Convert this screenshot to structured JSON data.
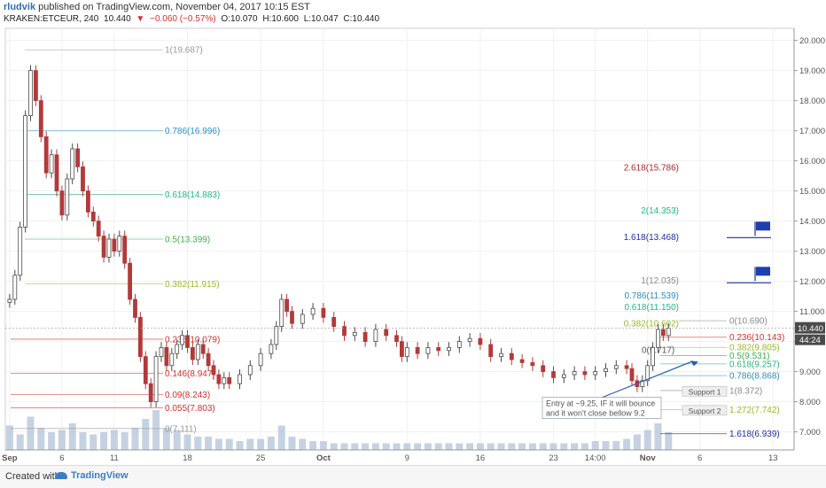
{
  "header": {
    "author": "rludvik",
    "published_text": " published on TradingView.com, November 04, 2017 10:15 EST",
    "symbol": "KRAKEN:ETCEUR, 240",
    "last": "10.440",
    "change": "−0.060 (−0.57%)",
    "open": "O:10.070",
    "high": "H:10.600",
    "low": "L:10.047",
    "close": "C:10.440"
  },
  "footer": {
    "created_with": "Created with",
    "brand": "TradingView"
  },
  "chart_data": {
    "type": "candlestick",
    "y_ticks": [
      "7.000",
      "8.000",
      "9.000",
      "10.000",
      "11.000",
      "12.000",
      "13.000",
      "14.000",
      "15.000",
      "16.000",
      "17.000",
      "18.000",
      "19.000",
      "20.000"
    ],
    "ylim": [
      6.4,
      20.4
    ],
    "x_ticks": [
      {
        "label": "Sep",
        "day": 1
      },
      {
        "label": "6",
        "day": 6
      },
      {
        "label": "11",
        "day": 11
      },
      {
        "label": "18",
        "day": 18
      },
      {
        "label": "25",
        "day": 25
      },
      {
        "label": "Oct",
        "day": 31
      },
      {
        "label": "9",
        "day": 39
      },
      {
        "label": "16",
        "day": 46
      },
      {
        "label": "23",
        "day": 53
      },
      {
        "label": "14:00",
        "day": 57
      },
      {
        "label": "Nov",
        "day": 62
      },
      {
        "label": "6",
        "day": 67
      },
      {
        "label": "13",
        "day": 74
      }
    ],
    "xlim": [
      0.5,
      77
    ],
    "price_tag": "10.440",
    "countdown_tag": "44:24",
    "price_series": [
      [
        1,
        11.4
      ],
      [
        1.5,
        12.2
      ],
      [
        2,
        13.8
      ],
      [
        2.5,
        17.5
      ],
      [
        3,
        19.0
      ],
      [
        3.5,
        18.0
      ],
      [
        4,
        16.8
      ],
      [
        4.5,
        15.6
      ],
      [
        5,
        16.2
      ],
      [
        5.5,
        15.0
      ],
      [
        6,
        14.2
      ],
      [
        6.5,
        15.4
      ],
      [
        7,
        16.4
      ],
      [
        7.5,
        15.8
      ],
      [
        8,
        15.0
      ],
      [
        8.5,
        14.3
      ],
      [
        9,
        14.0
      ],
      [
        9.5,
        13.5
      ],
      [
        10,
        12.8
      ],
      [
        10.5,
        13.4
      ],
      [
        11,
        13.0
      ],
      [
        11.5,
        13.5
      ],
      [
        12,
        12.6
      ],
      [
        12.5,
        11.4
      ],
      [
        13,
        10.8
      ],
      [
        13.5,
        9.5
      ],
      [
        14,
        8.6
      ],
      [
        14.5,
        8.0
      ],
      [
        15,
        9.5
      ],
      [
        15.5,
        9.8
      ],
      [
        16,
        9.2
      ],
      [
        16.5,
        9.6
      ],
      [
        17,
        9.9
      ],
      [
        17.5,
        10.2
      ],
      [
        18,
        9.8
      ],
      [
        18.5,
        9.4
      ],
      [
        19,
        9.9
      ],
      [
        19.5,
        9.6
      ],
      [
        20,
        9.2
      ],
      [
        20.5,
        8.9
      ],
      [
        21,
        8.6
      ],
      [
        21.5,
        8.8
      ],
      [
        22,
        8.6
      ],
      [
        23,
        8.9
      ],
      [
        24,
        9.2
      ],
      [
        25,
        9.6
      ],
      [
        26,
        9.9
      ],
      [
        26.5,
        10.5
      ],
      [
        27,
        11.4
      ],
      [
        27.5,
        11.0
      ],
      [
        28,
        10.6
      ],
      [
        29,
        10.9
      ],
      [
        30,
        11.1
      ],
      [
        31,
        10.8
      ],
      [
        32,
        10.5
      ],
      [
        33,
        10.2
      ],
      [
        34,
        10.3
      ],
      [
        35,
        10.0
      ],
      [
        36,
        10.4
      ],
      [
        37,
        10.2
      ],
      [
        38,
        10.0
      ],
      [
        38.5,
        9.5
      ],
      [
        39,
        9.8
      ],
      [
        40,
        9.6
      ],
      [
        41,
        9.8
      ],
      [
        42,
        9.7
      ],
      [
        43,
        9.8
      ],
      [
        44,
        10.0
      ],
      [
        45,
        10.1
      ],
      [
        46,
        9.9
      ],
      [
        47,
        9.5
      ],
      [
        48,
        9.6
      ],
      [
        49,
        9.4
      ],
      [
        50,
        9.3
      ],
      [
        51,
        9.2
      ],
      [
        52,
        9.0
      ],
      [
        53,
        8.8
      ],
      [
        54,
        8.9
      ],
      [
        55,
        9.0
      ],
      [
        56,
        8.9
      ],
      [
        57,
        9.0
      ],
      [
        58,
        9.1
      ],
      [
        59,
        9.2
      ],
      [
        60,
        9.1
      ],
      [
        60.5,
        8.7
      ],
      [
        61,
        8.5
      ],
      [
        61.5,
        8.7
      ],
      [
        62,
        9.2
      ],
      [
        62.5,
        9.8
      ],
      [
        63,
        10.4
      ],
      [
        63.5,
        10.2
      ],
      [
        64,
        10.44
      ]
    ],
    "volume_series": [
      [
        1,
        0.55
      ],
      [
        2,
        0.35
      ],
      [
        3,
        0.75
      ],
      [
        4,
        0.5
      ],
      [
        5,
        0.4
      ],
      [
        6,
        0.45
      ],
      [
        7,
        0.6
      ],
      [
        8,
        0.4
      ],
      [
        9,
        0.35
      ],
      [
        10,
        0.4
      ],
      [
        11,
        0.45
      ],
      [
        12,
        0.4
      ],
      [
        13,
        0.5
      ],
      [
        14,
        0.7
      ],
      [
        15,
        0.9
      ],
      [
        16,
        0.5
      ],
      [
        17,
        0.45
      ],
      [
        18,
        0.35
      ],
      [
        19,
        0.3
      ],
      [
        20,
        0.3
      ],
      [
        21,
        0.25
      ],
      [
        22,
        0.25
      ],
      [
        23,
        0.2
      ],
      [
        24,
        0.25
      ],
      [
        25,
        0.25
      ],
      [
        26,
        0.3
      ],
      [
        27,
        0.55
      ],
      [
        28,
        0.3
      ],
      [
        29,
        0.25
      ],
      [
        30,
        0.2
      ],
      [
        31,
        0.2
      ],
      [
        32,
        0.15
      ],
      [
        33,
        0.15
      ],
      [
        34,
        0.15
      ],
      [
        35,
        0.15
      ],
      [
        36,
        0.15
      ],
      [
        37,
        0.15
      ],
      [
        38,
        0.15
      ],
      [
        39,
        0.15
      ],
      [
        40,
        0.15
      ],
      [
        41,
        0.15
      ],
      [
        42,
        0.15
      ],
      [
        43,
        0.15
      ],
      [
        44,
        0.15
      ],
      [
        45,
        0.15
      ],
      [
        46,
        0.15
      ],
      [
        47,
        0.15
      ],
      [
        48,
        0.15
      ],
      [
        49,
        0.15
      ],
      [
        50,
        0.15
      ],
      [
        51,
        0.15
      ],
      [
        52,
        0.15
      ],
      [
        53,
        0.15
      ],
      [
        54,
        0.15
      ],
      [
        55,
        0.15
      ],
      [
        56,
        0.15
      ],
      [
        57,
        0.2
      ],
      [
        58,
        0.2
      ],
      [
        59,
        0.2
      ],
      [
        60,
        0.25
      ],
      [
        61,
        0.35
      ],
      [
        62,
        0.45
      ],
      [
        63,
        0.6
      ],
      [
        64,
        0.4
      ]
    ],
    "fib_levels_left": [
      {
        "label": "1(19.687)",
        "value": 19.687,
        "color": "#9a9a9a"
      },
      {
        "label": "0.786(16.996)",
        "value": 16.996,
        "color": "#2a8fc2"
      },
      {
        "label": "0.618(14.883)",
        "value": 14.883,
        "color": "#27b484"
      },
      {
        "label": "0.5(13.399)",
        "value": 13.399,
        "color": "#3db14b"
      },
      {
        "label": "0.382(11.915)",
        "value": 11.915,
        "color": "#98b928"
      },
      {
        "label": "0.236(10.079)",
        "value": 10.079,
        "color": "#d0312d"
      },
      {
        "label": "0.146(8.947)",
        "value": 8.947,
        "color": "#d0312d"
      },
      {
        "label": "0.09(8.243)",
        "value": 8.243,
        "color": "#d0312d"
      },
      {
        "label": "0.055(7.803)",
        "value": 7.803,
        "color": "#d0312d"
      },
      {
        "label": "0(7.111)",
        "value": 7.111,
        "color": "#9a9a9a"
      }
    ],
    "fib_ext_upper": [
      {
        "label": "2.618(15.786)",
        "value": 15.786,
        "color": "#b2262a"
      },
      {
        "label": "2(14.353)",
        "value": 14.353,
        "color": "#27b484"
      },
      {
        "label": "1.618(13.468)",
        "value": 13.468,
        "color": "#1f2f9a"
      },
      {
        "label": "1(12.035)",
        "value": 12.035,
        "color": "#8a8a8a"
      },
      {
        "label": "0.786(11.539)",
        "value": 11.539,
        "color": "#2a8fc2"
      },
      {
        "label": "0.618(11.150)",
        "value": 11.15,
        "color": "#27b484"
      },
      {
        "label": "0.382(10.602)",
        "value": 10.602,
        "color": "#98b928"
      }
    ],
    "fib_levels_right": [
      {
        "label": "0(10.690)",
        "value": 10.69,
        "color": "#8a8a8a"
      },
      {
        "label": "0.236(10.143)",
        "value": 10.143,
        "color": "#d0312d"
      },
      {
        "label": "0.382(9.805)",
        "value": 9.805,
        "color": "#98b928"
      },
      {
        "label": "0.5(9.531)",
        "value": 9.531,
        "color": "#3db14b"
      },
      {
        "label": "0.618(9.257)",
        "value": 9.257,
        "color": "#27b484"
      },
      {
        "label": "0.786(8.868)",
        "value": 8.868,
        "color": "#2a8fc2"
      },
      {
        "label": "1(8.372)",
        "value": 8.372,
        "color": "#8a8a8a"
      },
      {
        "label": "1.272(7.742)",
        "value": 7.742,
        "color": "#98b928"
      },
      {
        "label": "1.618(6.939)",
        "value": 6.939,
        "color": "#1f2f9a"
      }
    ],
    "extra_label": {
      "label": "0(9.717)",
      "value": 9.717,
      "color": "#555555"
    },
    "support_labels": [
      {
        "label": "Support 1",
        "value": 8.33
      },
      {
        "label": "Support 2",
        "value": 7.7
      }
    ],
    "annotation": {
      "line1": "Entry at ~9.25, IF it will bounce",
      "line2": "and it won't close bellow 9.2"
    },
    "colors": {
      "up": "#4a4a4a",
      "down": "#b23a3a",
      "volume": "#aebfd4",
      "accent": "#2a5db0"
    }
  }
}
